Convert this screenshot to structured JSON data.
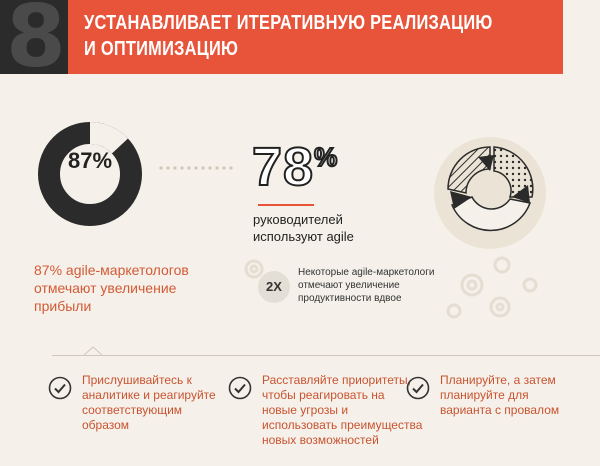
{
  "header": {
    "number": "8",
    "title_line1": "УСТАНАВЛИВАЕТ ИТЕРАТИВНУЮ РЕАЛИЗАЦИЮ",
    "title_line2": "И ОПТИМИЗАЦИЮ"
  },
  "colors": {
    "accent": "#e8543a",
    "dark": "#2b2b2b",
    "background": "#f5f1ea"
  },
  "stat_left": {
    "value": "87%",
    "fraction": 0.87,
    "line1": "87% agile-маркетологов",
    "line2": "отмечают увеличение",
    "line3": "прибыли"
  },
  "stat_right": {
    "value": "78",
    "suffix": "%",
    "line1": "руководителей",
    "line2": "используют agile"
  },
  "twox": {
    "badge": "2X",
    "line1": "Некоторые agile-маркетологи",
    "line2": "отмечают увеличение",
    "line3": "продуктивности вдвое"
  },
  "tips": [
    {
      "lines": [
        "Прислушивайтесь к",
        "аналитике и реагируйте",
        "соответствующим",
        "образом"
      ]
    },
    {
      "lines": [
        "Расставляйте приоритеты,",
        "чтобы реагировать на",
        "новые угрозы и",
        "использовать преимущества",
        "новых возможностей"
      ]
    },
    {
      "lines": [
        "Планируйте, а затем",
        "планируйте для",
        "варианта с провалом"
      ]
    }
  ]
}
